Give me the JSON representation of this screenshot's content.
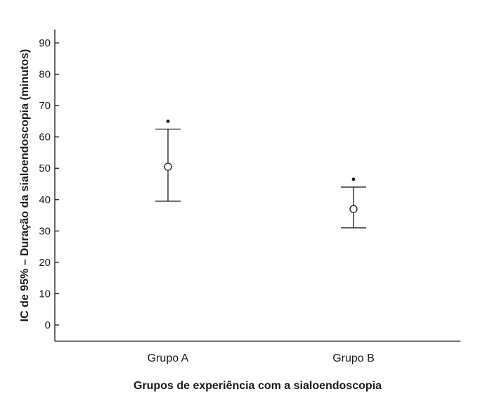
{
  "chart_data": {
    "type": "errorbar",
    "xlabel": "Grupos de experiência com a sialoendoscopia",
    "ylabel": "IC de 95% – Duração da sialoendoscopia (minutos)",
    "ylim": [
      -5,
      95
    ],
    "yticks": [
      0,
      10,
      20,
      30,
      40,
      50,
      60,
      70,
      80,
      90
    ],
    "grid": false,
    "categories": [
      "Grupo A",
      "Grupo B"
    ],
    "points": [
      {
        "category": "Grupo A",
        "mean": 50.5,
        "lower": 39.5,
        "upper": 62.5,
        "outlier": 65
      },
      {
        "category": "Grupo B",
        "mean": 37,
        "lower": 31,
        "upper": 44,
        "outlier": 46.5
      }
    ],
    "colors": {
      "ink": "#1a1a1a",
      "background": "#ffffff"
    }
  }
}
